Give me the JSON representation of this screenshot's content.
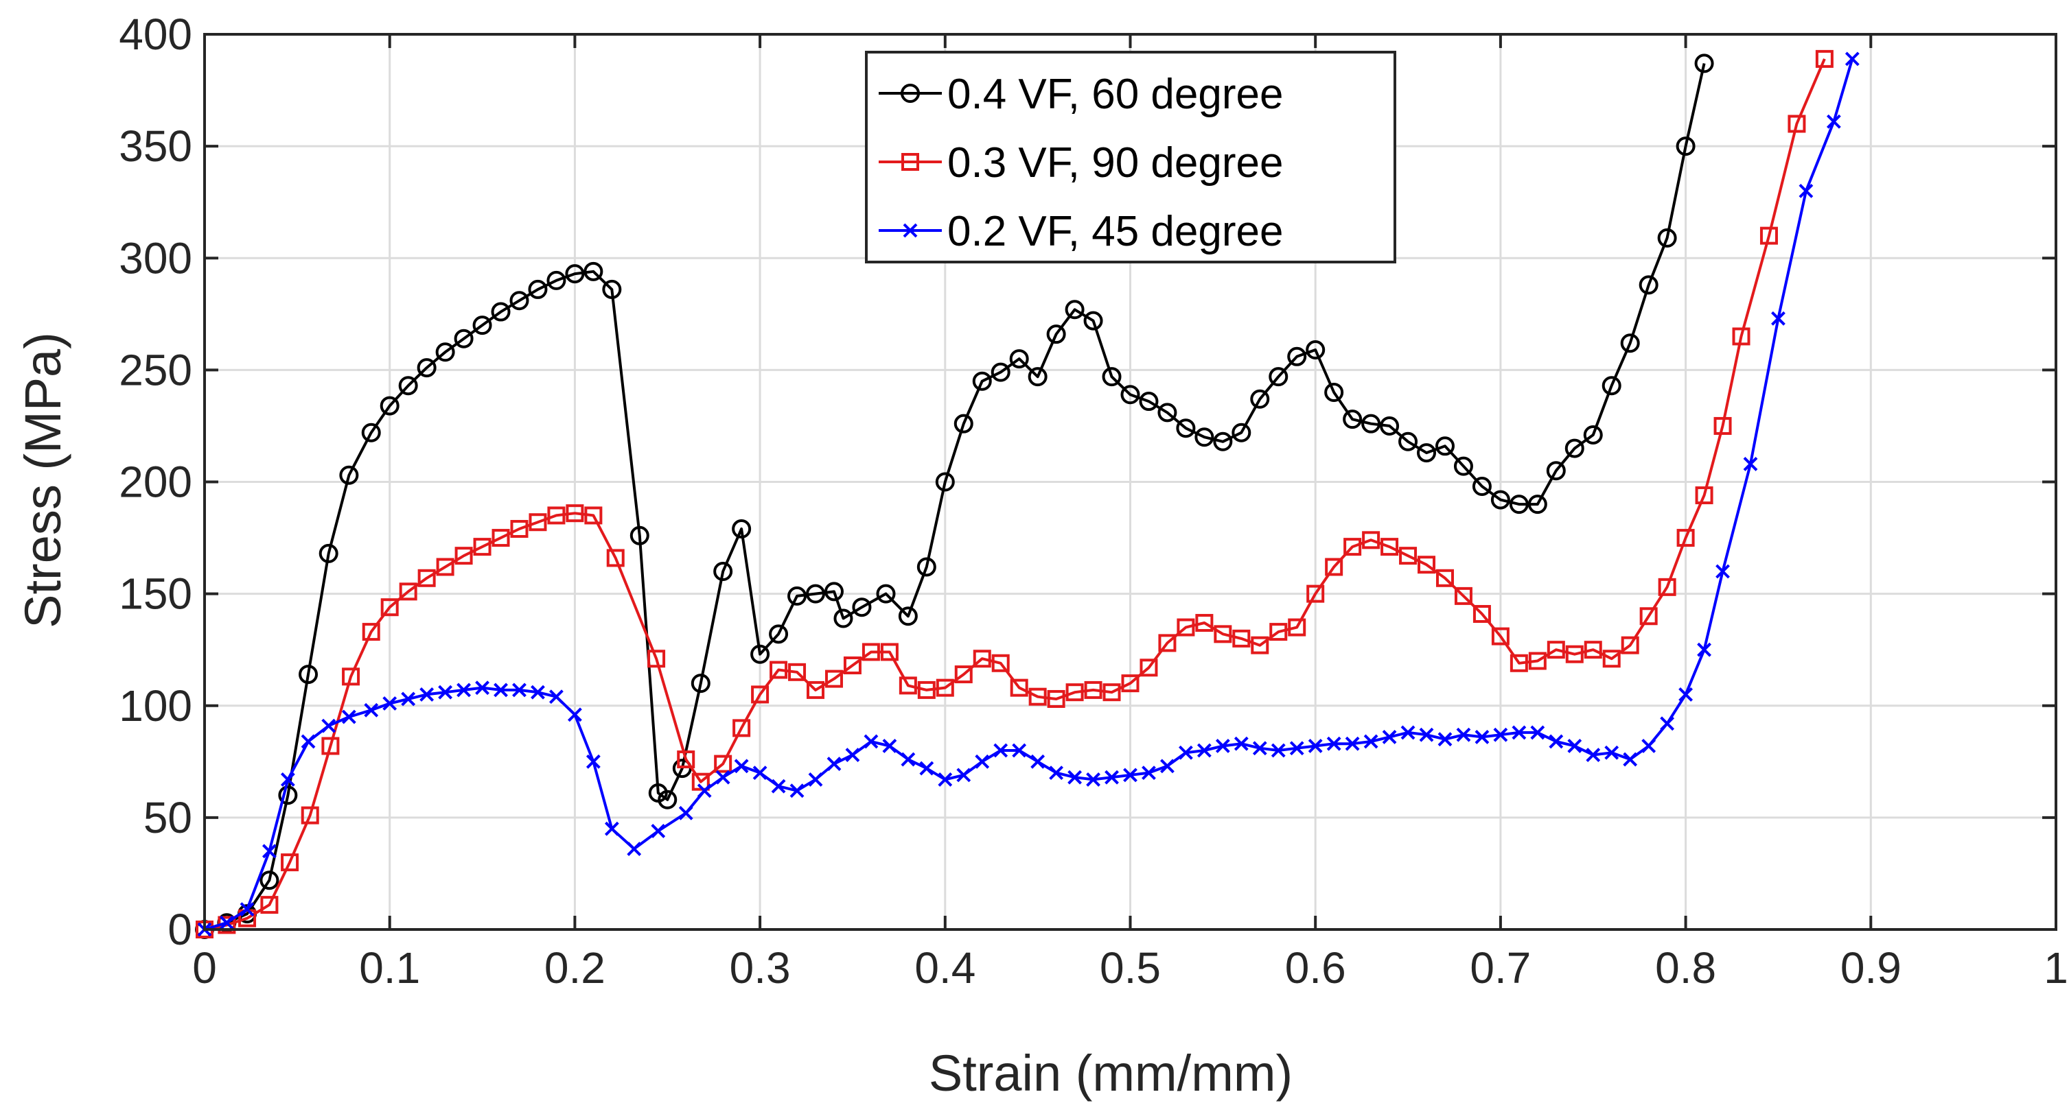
{
  "chart_data": {
    "type": "line",
    "title": "",
    "xlabel": "Strain (mm/mm)",
    "ylabel": "Stress (MPa)",
    "xlim": [
      0,
      1
    ],
    "ylim": [
      0,
      400
    ],
    "grid": true,
    "legend_position": "top-center",
    "x_ticks": [
      {
        "value": 0,
        "label": "0"
      },
      {
        "value": 0.1,
        "label": "0.1"
      },
      {
        "value": 0.2,
        "label": "0.2"
      },
      {
        "value": 0.3,
        "label": "0.3"
      },
      {
        "value": 0.4,
        "label": "0.4"
      },
      {
        "value": 0.5,
        "label": "0.5"
      },
      {
        "value": 0.6,
        "label": "0.6"
      },
      {
        "value": 0.7,
        "label": "0.7"
      },
      {
        "value": 0.8,
        "label": "0.8"
      },
      {
        "value": 0.9,
        "label": "0.9"
      },
      {
        "value": 1,
        "label": "1"
      }
    ],
    "y_ticks": [
      {
        "value": 0,
        "label": "0"
      },
      {
        "value": 50,
        "label": "50"
      },
      {
        "value": 100,
        "label": "100"
      },
      {
        "value": 150,
        "label": "150"
      },
      {
        "value": 200,
        "label": "200"
      },
      {
        "value": 250,
        "label": "250"
      },
      {
        "value": 300,
        "label": "300"
      },
      {
        "value": 350,
        "label": "350"
      },
      {
        "value": 400,
        "label": "400"
      }
    ],
    "series": [
      {
        "name": "0.4 VF, 60 degree",
        "color": "#000000",
        "marker": "circle",
        "points": [
          [
            0,
            0
          ],
          [
            0.012,
            3
          ],
          [
            0.023,
            7
          ],
          [
            0.035,
            22
          ],
          [
            0.045,
            60
          ],
          [
            0.056,
            114
          ],
          [
            0.067,
            168
          ],
          [
            0.078,
            203
          ],
          [
            0.09,
            222
          ],
          [
            0.1,
            234
          ],
          [
            0.11,
            243
          ],
          [
            0.12,
            251
          ],
          [
            0.13,
            258
          ],
          [
            0.14,
            264
          ],
          [
            0.15,
            270
          ],
          [
            0.16,
            276
          ],
          [
            0.17,
            281
          ],
          [
            0.18,
            286
          ],
          [
            0.19,
            290
          ],
          [
            0.2,
            293
          ],
          [
            0.21,
            294
          ],
          [
            0.22,
            286
          ],
          [
            0.235,
            176
          ],
          [
            0.245,
            61
          ],
          [
            0.25,
            58
          ],
          [
            0.258,
            72
          ],
          [
            0.268,
            110
          ],
          [
            0.28,
            160
          ],
          [
            0.29,
            179
          ],
          [
            0.3,
            123
          ],
          [
            0.31,
            132
          ],
          [
            0.32,
            149
          ],
          [
            0.33,
            150
          ],
          [
            0.34,
            151
          ],
          [
            0.345,
            139
          ],
          [
            0.355,
            144
          ],
          [
            0.368,
            150
          ],
          [
            0.38,
            140
          ],
          [
            0.39,
            162
          ],
          [
            0.4,
            200
          ],
          [
            0.41,
            226
          ],
          [
            0.42,
            245
          ],
          [
            0.43,
            249
          ],
          [
            0.44,
            255
          ],
          [
            0.45,
            247
          ],
          [
            0.46,
            266
          ],
          [
            0.47,
            277
          ],
          [
            0.48,
            272
          ],
          [
            0.49,
            247
          ],
          [
            0.5,
            239
          ],
          [
            0.51,
            236
          ],
          [
            0.52,
            231
          ],
          [
            0.53,
            224
          ],
          [
            0.54,
            220
          ],
          [
            0.55,
            218
          ],
          [
            0.56,
            222
          ],
          [
            0.57,
            237
          ],
          [
            0.58,
            247
          ],
          [
            0.59,
            256
          ],
          [
            0.6,
            259
          ],
          [
            0.61,
            240
          ],
          [
            0.62,
            228
          ],
          [
            0.63,
            226
          ],
          [
            0.64,
            225
          ],
          [
            0.65,
            218
          ],
          [
            0.66,
            213
          ],
          [
            0.67,
            216
          ],
          [
            0.68,
            207
          ],
          [
            0.69,
            198
          ],
          [
            0.7,
            192
          ],
          [
            0.71,
            190
          ],
          [
            0.72,
            190
          ],
          [
            0.73,
            205
          ],
          [
            0.74,
            215
          ],
          [
            0.75,
            221
          ],
          [
            0.76,
            243
          ],
          [
            0.77,
            262
          ],
          [
            0.78,
            288
          ],
          [
            0.79,
            309
          ],
          [
            0.8,
            350
          ],
          [
            0.81,
            387
          ]
        ]
      },
      {
        "name": "0.3 VF, 90 degree",
        "color": "#e31a1c",
        "marker": "square",
        "points": [
          [
            0,
            0
          ],
          [
            0.012,
            2
          ],
          [
            0.023,
            5
          ],
          [
            0.035,
            11
          ],
          [
            0.046,
            30
          ],
          [
            0.057,
            51
          ],
          [
            0.068,
            82
          ],
          [
            0.079,
            113
          ],
          [
            0.09,
            133
          ],
          [
            0.1,
            144
          ],
          [
            0.11,
            151
          ],
          [
            0.12,
            157
          ],
          [
            0.13,
            162
          ],
          [
            0.14,
            167
          ],
          [
            0.15,
            171
          ],
          [
            0.16,
            175
          ],
          [
            0.17,
            179
          ],
          [
            0.18,
            182
          ],
          [
            0.19,
            185
          ],
          [
            0.2,
            186
          ],
          [
            0.21,
            185
          ],
          [
            0.222,
            166
          ],
          [
            0.244,
            121
          ],
          [
            0.26,
            76
          ],
          [
            0.268,
            66
          ],
          [
            0.28,
            74
          ],
          [
            0.29,
            90
          ],
          [
            0.3,
            105
          ],
          [
            0.31,
            116
          ],
          [
            0.32,
            115
          ],
          [
            0.33,
            107
          ],
          [
            0.34,
            112
          ],
          [
            0.35,
            118
          ],
          [
            0.36,
            124
          ],
          [
            0.37,
            124
          ],
          [
            0.38,
            109
          ],
          [
            0.39,
            107
          ],
          [
            0.4,
            108
          ],
          [
            0.41,
            114
          ],
          [
            0.42,
            121
          ],
          [
            0.43,
            119
          ],
          [
            0.44,
            108
          ],
          [
            0.45,
            104
          ],
          [
            0.46,
            103
          ],
          [
            0.47,
            106
          ],
          [
            0.48,
            107
          ],
          [
            0.49,
            106
          ],
          [
            0.5,
            110
          ],
          [
            0.51,
            117
          ],
          [
            0.52,
            128
          ],
          [
            0.53,
            135
          ],
          [
            0.54,
            137
          ],
          [
            0.55,
            132
          ],
          [
            0.56,
            130
          ],
          [
            0.57,
            127
          ],
          [
            0.58,
            133
          ],
          [
            0.59,
            135
          ],
          [
            0.6,
            150
          ],
          [
            0.61,
            162
          ],
          [
            0.62,
            171
          ],
          [
            0.63,
            174
          ],
          [
            0.64,
            171
          ],
          [
            0.65,
            167
          ],
          [
            0.66,
            163
          ],
          [
            0.67,
            157
          ],
          [
            0.68,
            149
          ],
          [
            0.69,
            141
          ],
          [
            0.7,
            131
          ],
          [
            0.71,
            119
          ],
          [
            0.72,
            120
          ],
          [
            0.73,
            125
          ],
          [
            0.74,
            123
          ],
          [
            0.75,
            125
          ],
          [
            0.76,
            121
          ],
          [
            0.77,
            127
          ],
          [
            0.78,
            140
          ],
          [
            0.79,
            153
          ],
          [
            0.8,
            175
          ],
          [
            0.81,
            194
          ],
          [
            0.82,
            225
          ],
          [
            0.83,
            265
          ],
          [
            0.845,
            310
          ],
          [
            0.86,
            360
          ],
          [
            0.875,
            389
          ]
        ]
      },
      {
        "name": "0.2 VF, 45 degree",
        "color": "#0000ff",
        "marker": "x",
        "points": [
          [
            0,
            0
          ],
          [
            0.012,
            3
          ],
          [
            0.023,
            9
          ],
          [
            0.035,
            35
          ],
          [
            0.045,
            67
          ],
          [
            0.056,
            84
          ],
          [
            0.067,
            91
          ],
          [
            0.078,
            95
          ],
          [
            0.09,
            98
          ],
          [
            0.1,
            101
          ],
          [
            0.11,
            103
          ],
          [
            0.12,
            105
          ],
          [
            0.13,
            106
          ],
          [
            0.14,
            107
          ],
          [
            0.15,
            108
          ],
          [
            0.16,
            107
          ],
          [
            0.17,
            107
          ],
          [
            0.18,
            106
          ],
          [
            0.19,
            104
          ],
          [
            0.2,
            96
          ],
          [
            0.21,
            75
          ],
          [
            0.22,
            45
          ],
          [
            0.232,
            36
          ],
          [
            0.245,
            44
          ],
          [
            0.26,
            52
          ],
          [
            0.27,
            62
          ],
          [
            0.28,
            68
          ],
          [
            0.29,
            73
          ],
          [
            0.3,
            70
          ],
          [
            0.31,
            64
          ],
          [
            0.32,
            62
          ],
          [
            0.33,
            67
          ],
          [
            0.34,
            74
          ],
          [
            0.35,
            78
          ],
          [
            0.36,
            84
          ],
          [
            0.37,
            82
          ],
          [
            0.38,
            76
          ],
          [
            0.39,
            72
          ],
          [
            0.4,
            67
          ],
          [
            0.41,
            69
          ],
          [
            0.42,
            75
          ],
          [
            0.43,
            80
          ],
          [
            0.44,
            80
          ],
          [
            0.45,
            75
          ],
          [
            0.46,
            70
          ],
          [
            0.47,
            68
          ],
          [
            0.48,
            67
          ],
          [
            0.49,
            68
          ],
          [
            0.5,
            69
          ],
          [
            0.51,
            70
          ],
          [
            0.52,
            73
          ],
          [
            0.53,
            79
          ],
          [
            0.54,
            80
          ],
          [
            0.55,
            82
          ],
          [
            0.56,
            83
          ],
          [
            0.57,
            81
          ],
          [
            0.58,
            80
          ],
          [
            0.59,
            81
          ],
          [
            0.6,
            82
          ],
          [
            0.61,
            83
          ],
          [
            0.62,
            83
          ],
          [
            0.63,
            84
          ],
          [
            0.64,
            86
          ],
          [
            0.65,
            88
          ],
          [
            0.66,
            87
          ],
          [
            0.67,
            85
          ],
          [
            0.68,
            87
          ],
          [
            0.69,
            86
          ],
          [
            0.7,
            87
          ],
          [
            0.71,
            88
          ],
          [
            0.72,
            88
          ],
          [
            0.73,
            84
          ],
          [
            0.74,
            82
          ],
          [
            0.75,
            78
          ],
          [
            0.76,
            79
          ],
          [
            0.77,
            76
          ],
          [
            0.78,
            82
          ],
          [
            0.79,
            92
          ],
          [
            0.8,
            105
          ],
          [
            0.81,
            125
          ],
          [
            0.82,
            160
          ],
          [
            0.835,
            208
          ],
          [
            0.85,
            273
          ],
          [
            0.865,
            330
          ],
          [
            0.88,
            361
          ],
          [
            0.89,
            389
          ]
        ]
      }
    ]
  }
}
